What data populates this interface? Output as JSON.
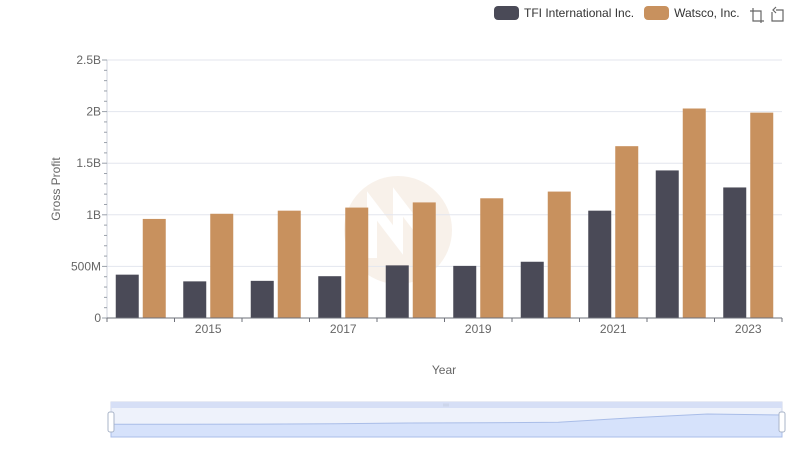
{
  "chart_data": {
    "type": "bar",
    "title": "",
    "xlabel": "Year",
    "ylabel": "Gross Profit",
    "ylim": [
      0,
      2500000000
    ],
    "y_ticks": [
      {
        "value": 0,
        "label": "0"
      },
      {
        "value": 500000000,
        "label": "500M"
      },
      {
        "value": 1000000000,
        "label": "1B"
      },
      {
        "value": 1500000000,
        "label": "1.5B"
      },
      {
        "value": 2000000000,
        "label": "2B"
      },
      {
        "value": 2500000000,
        "label": "2.5B"
      }
    ],
    "categories": [
      "2014",
      "2015",
      "2016",
      "2017",
      "2018",
      "2019",
      "2020",
      "2021",
      "2022",
      "2023"
    ],
    "x_tick_labels": [
      "",
      "2015",
      "",
      "2017",
      "",
      "2019",
      "",
      "2021",
      "",
      "2023"
    ],
    "grid": true,
    "legend_position": "top-right",
    "series": [
      {
        "name": "TFI International Inc.",
        "color": "#4a4a57",
        "values": [
          420000000,
          355000000,
          360000000,
          405000000,
          510000000,
          505000000,
          545000000,
          1040000000,
          1430000000,
          1265000000
        ]
      },
      {
        "name": "Watsco, Inc.",
        "color": "#c8915e",
        "values": [
          960000000,
          1010000000,
          1040000000,
          1070000000,
          1120000000,
          1160000000,
          1225000000,
          1665000000,
          2030000000,
          1990000000
        ]
      }
    ]
  },
  "toolbox": {
    "zoom_icon": "data-zoom-icon",
    "restore_icon": "restore-icon"
  },
  "dataZoom": {
    "range_start": 0,
    "range_end": 100
  }
}
